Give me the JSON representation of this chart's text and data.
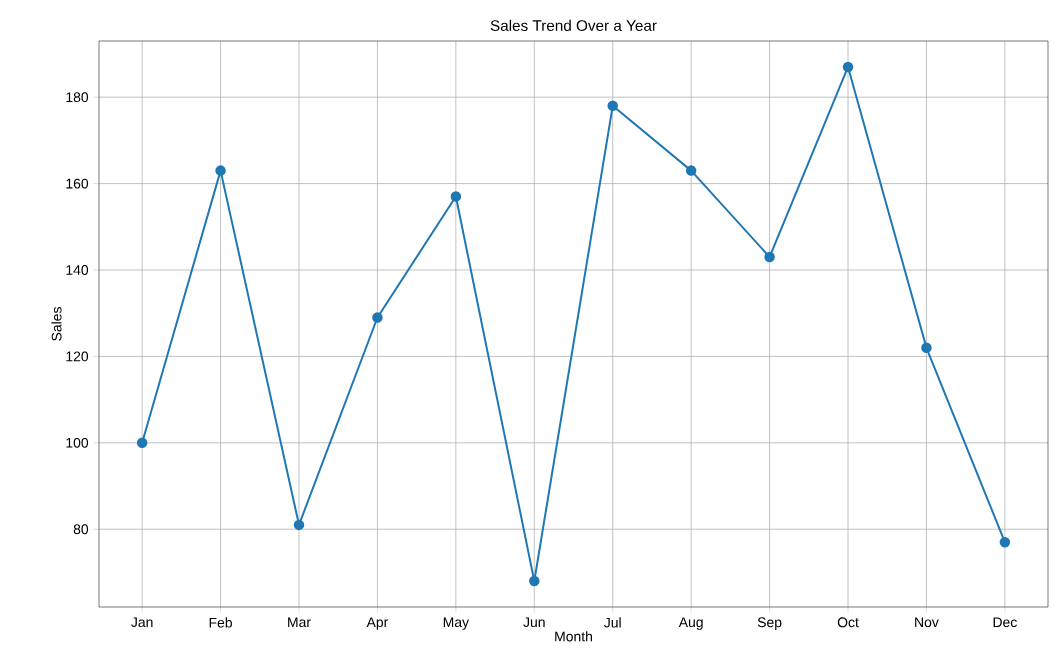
{
  "chart_data": {
    "type": "line",
    "title": "Sales Trend Over a Year",
    "xlabel": "Month",
    "ylabel": "Sales",
    "categories": [
      "Jan",
      "Feb",
      "Mar",
      "Apr",
      "May",
      "Jun",
      "Jul",
      "Aug",
      "Sep",
      "Oct",
      "Nov",
      "Dec"
    ],
    "series": [
      {
        "color": "#1f77b4",
        "values": [
          100,
          163,
          81,
          129,
          157,
          68,
          178,
          163,
          143,
          187,
          122,
          77
        ]
      }
    ],
    "ylim": [
      62,
      193
    ],
    "yticks": [
      80,
      100,
      120,
      140,
      160,
      180
    ],
    "grid": true,
    "marker": "circle",
    "line_style": "solid"
  }
}
